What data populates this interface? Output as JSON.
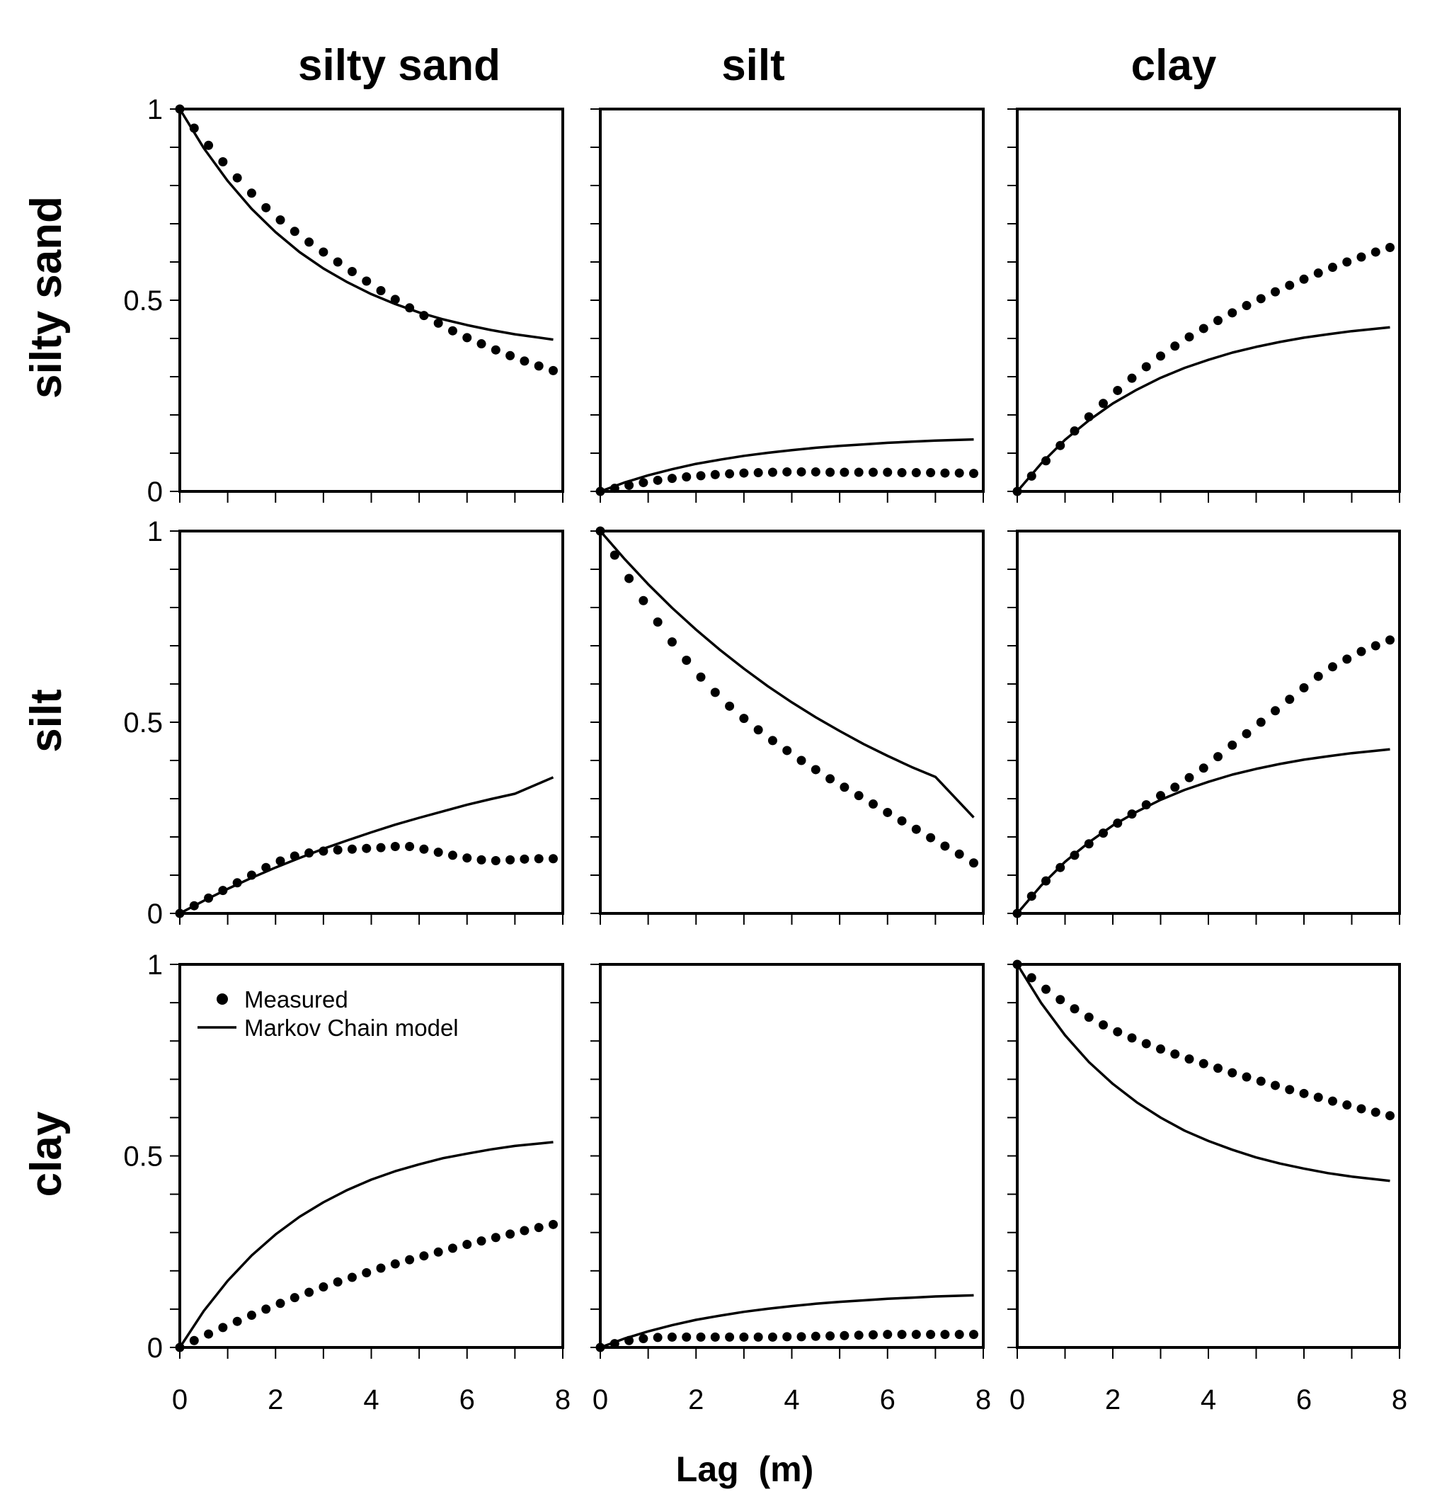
{
  "chart_data": {
    "type": "line",
    "layout": "3x3 grid of panels",
    "column_titles": [
      "silty sand",
      "silt",
      "clay"
    ],
    "row_titles": [
      "silty sand",
      "silt",
      "clay"
    ],
    "xlabel": "Lag  (m)",
    "xlim": [
      0,
      8
    ],
    "ylim": [
      0,
      1
    ],
    "x_ticks": [
      0,
      1,
      2,
      3,
      4,
      5,
      6,
      7,
      8
    ],
    "x_tick_labels": [
      "0",
      "2",
      "4",
      "6",
      "8"
    ],
    "y_ticks": [
      0,
      0.1,
      0.2,
      0.3,
      0.4,
      0.5,
      0.6,
      0.7,
      0.8,
      0.9,
      1
    ],
    "y_tick_labels": [
      "0",
      "0.5",
      "1"
    ],
    "legend": {
      "position": "top-left of bottom-left panel",
      "entries": [
        {
          "label": "Measured",
          "style": "dots"
        },
        {
          "label": "Markov Chain model",
          "style": "line"
        }
      ]
    },
    "model_x": [
      0,
      0.5,
      1,
      1.5,
      2,
      2.5,
      3,
      3.5,
      4,
      4.5,
      5,
      5.5,
      6,
      6.5,
      7,
      7.8
    ],
    "measured_x": [
      0,
      0.3,
      0.6,
      0.9,
      1.2,
      1.5,
      1.8,
      2.1,
      2.4,
      2.7,
      3.0,
      3.3,
      3.6,
      3.9,
      4.2,
      4.5,
      4.8,
      5.1,
      5.4,
      5.7,
      6.0,
      6.3,
      6.6,
      6.9,
      7.2,
      7.5,
      7.8
    ],
    "panels": [
      {
        "row": "silty sand",
        "col": "silty sand",
        "model": [
          1.0,
          0.898,
          0.812,
          0.739,
          0.678,
          0.626,
          0.583,
          0.547,
          0.516,
          0.49,
          0.468,
          0.45,
          0.435,
          0.422,
          0.411,
          0.397
        ],
        "measured": [
          1.0,
          0.95,
          0.905,
          0.862,
          0.82,
          0.78,
          0.742,
          0.71,
          0.68,
          0.652,
          0.626,
          0.6,
          0.575,
          0.55,
          0.525,
          0.502,
          0.48,
          0.46,
          0.44,
          0.42,
          0.402,
          0.386,
          0.37,
          0.355,
          0.341,
          0.328,
          0.316
        ]
      },
      {
        "row": "silty sand",
        "col": "silt",
        "model": [
          0.0,
          0.023,
          0.042,
          0.058,
          0.072,
          0.083,
          0.093,
          0.101,
          0.108,
          0.114,
          0.119,
          0.123,
          0.127,
          0.13,
          0.133,
          0.136
        ],
        "measured": [
          0.0,
          0.008,
          0.016,
          0.023,
          0.029,
          0.034,
          0.038,
          0.041,
          0.044,
          0.046,
          0.048,
          0.049,
          0.05,
          0.051,
          0.051,
          0.051,
          0.05,
          0.05,
          0.05,
          0.05,
          0.05,
          0.049,
          0.049,
          0.049,
          0.048,
          0.048,
          0.047
        ]
      },
      {
        "row": "silty sand",
        "col": "clay",
        "model": [
          0.0,
          0.073,
          0.135,
          0.186,
          0.23,
          0.266,
          0.297,
          0.323,
          0.344,
          0.363,
          0.378,
          0.391,
          0.402,
          0.411,
          0.419,
          0.429
        ],
        "measured": [
          0.0,
          0.04,
          0.08,
          0.12,
          0.158,
          0.195,
          0.23,
          0.264,
          0.296,
          0.326,
          0.354,
          0.38,
          0.404,
          0.426,
          0.447,
          0.467,
          0.486,
          0.504,
          0.522,
          0.539,
          0.555,
          0.571,
          0.586,
          0.6,
          0.613,
          0.626,
          0.638
        ]
      },
      {
        "row": "silt",
        "col": "silty sand",
        "model": [
          0.0,
          0.033,
          0.064,
          0.093,
          0.12,
          0.145,
          0.169,
          0.191,
          0.212,
          0.232,
          0.25,
          0.267,
          0.284,
          0.299,
          0.313,
          0.356
        ],
        "measured": [
          0.0,
          0.02,
          0.04,
          0.06,
          0.08,
          0.1,
          0.12,
          0.137,
          0.15,
          0.158,
          0.163,
          0.166,
          0.168,
          0.17,
          0.172,
          0.175,
          0.175,
          0.168,
          0.16,
          0.152,
          0.145,
          0.14,
          0.138,
          0.14,
          0.142,
          0.143,
          0.143
        ]
      },
      {
        "row": "silt",
        "col": "silt",
        "model": [
          1.0,
          0.928,
          0.861,
          0.799,
          0.742,
          0.689,
          0.64,
          0.594,
          0.552,
          0.513,
          0.477,
          0.443,
          0.412,
          0.383,
          0.357,
          0.251
        ],
        "measured": [
          1.0,
          0.937,
          0.876,
          0.818,
          0.762,
          0.71,
          0.662,
          0.618,
          0.578,
          0.542,
          0.51,
          0.48,
          0.452,
          0.426,
          0.4,
          0.376,
          0.352,
          0.33,
          0.308,
          0.286,
          0.264,
          0.242,
          0.22,
          0.198,
          0.176,
          0.155,
          0.132
        ]
      },
      {
        "row": "silt",
        "col": "clay",
        "model": [
          0.0,
          0.073,
          0.135,
          0.186,
          0.23,
          0.266,
          0.297,
          0.323,
          0.344,
          0.363,
          0.378,
          0.391,
          0.402,
          0.411,
          0.419,
          0.429
        ],
        "measured": [
          0.0,
          0.045,
          0.085,
          0.12,
          0.152,
          0.182,
          0.21,
          0.236,
          0.26,
          0.284,
          0.308,
          0.33,
          0.355,
          0.38,
          0.41,
          0.44,
          0.47,
          0.5,
          0.53,
          0.56,
          0.59,
          0.62,
          0.645,
          0.665,
          0.685,
          0.7,
          0.715
        ]
      },
      {
        "row": "clay",
        "col": "silty sand",
        "model": [
          0.0,
          0.095,
          0.174,
          0.24,
          0.295,
          0.341,
          0.379,
          0.411,
          0.438,
          0.46,
          0.478,
          0.494,
          0.506,
          0.517,
          0.526,
          0.536
        ],
        "measured": [
          0.0,
          0.018,
          0.035,
          0.052,
          0.068,
          0.084,
          0.1,
          0.115,
          0.13,
          0.144,
          0.158,
          0.171,
          0.183,
          0.195,
          0.207,
          0.218,
          0.229,
          0.239,
          0.249,
          0.259,
          0.269,
          0.278,
          0.287,
          0.296,
          0.305,
          0.313,
          0.321
        ]
      },
      {
        "row": "clay",
        "col": "silt",
        "model": [
          0.0,
          0.023,
          0.042,
          0.058,
          0.072,
          0.083,
          0.093,
          0.101,
          0.108,
          0.114,
          0.119,
          0.123,
          0.127,
          0.13,
          0.133,
          0.136
        ],
        "measured": [
          0.0,
          0.01,
          0.018,
          0.023,
          0.026,
          0.027,
          0.027,
          0.027,
          0.027,
          0.027,
          0.027,
          0.027,
          0.027,
          0.028,
          0.028,
          0.029,
          0.03,
          0.031,
          0.032,
          0.033,
          0.034,
          0.034,
          0.034,
          0.034,
          0.034,
          0.034,
          0.034
        ]
      },
      {
        "row": "clay",
        "col": "clay",
        "model": [
          1.0,
          0.899,
          0.815,
          0.745,
          0.688,
          0.64,
          0.6,
          0.566,
          0.539,
          0.516,
          0.496,
          0.48,
          0.467,
          0.455,
          0.446,
          0.435
        ],
        "measured": [
          1.0,
          0.965,
          0.935,
          0.908,
          0.884,
          0.862,
          0.842,
          0.824,
          0.808,
          0.793,
          0.779,
          0.766,
          0.753,
          0.741,
          0.729,
          0.717,
          0.706,
          0.695,
          0.684,
          0.673,
          0.663,
          0.653,
          0.643,
          0.633,
          0.623,
          0.614,
          0.605
        ]
      }
    ]
  }
}
